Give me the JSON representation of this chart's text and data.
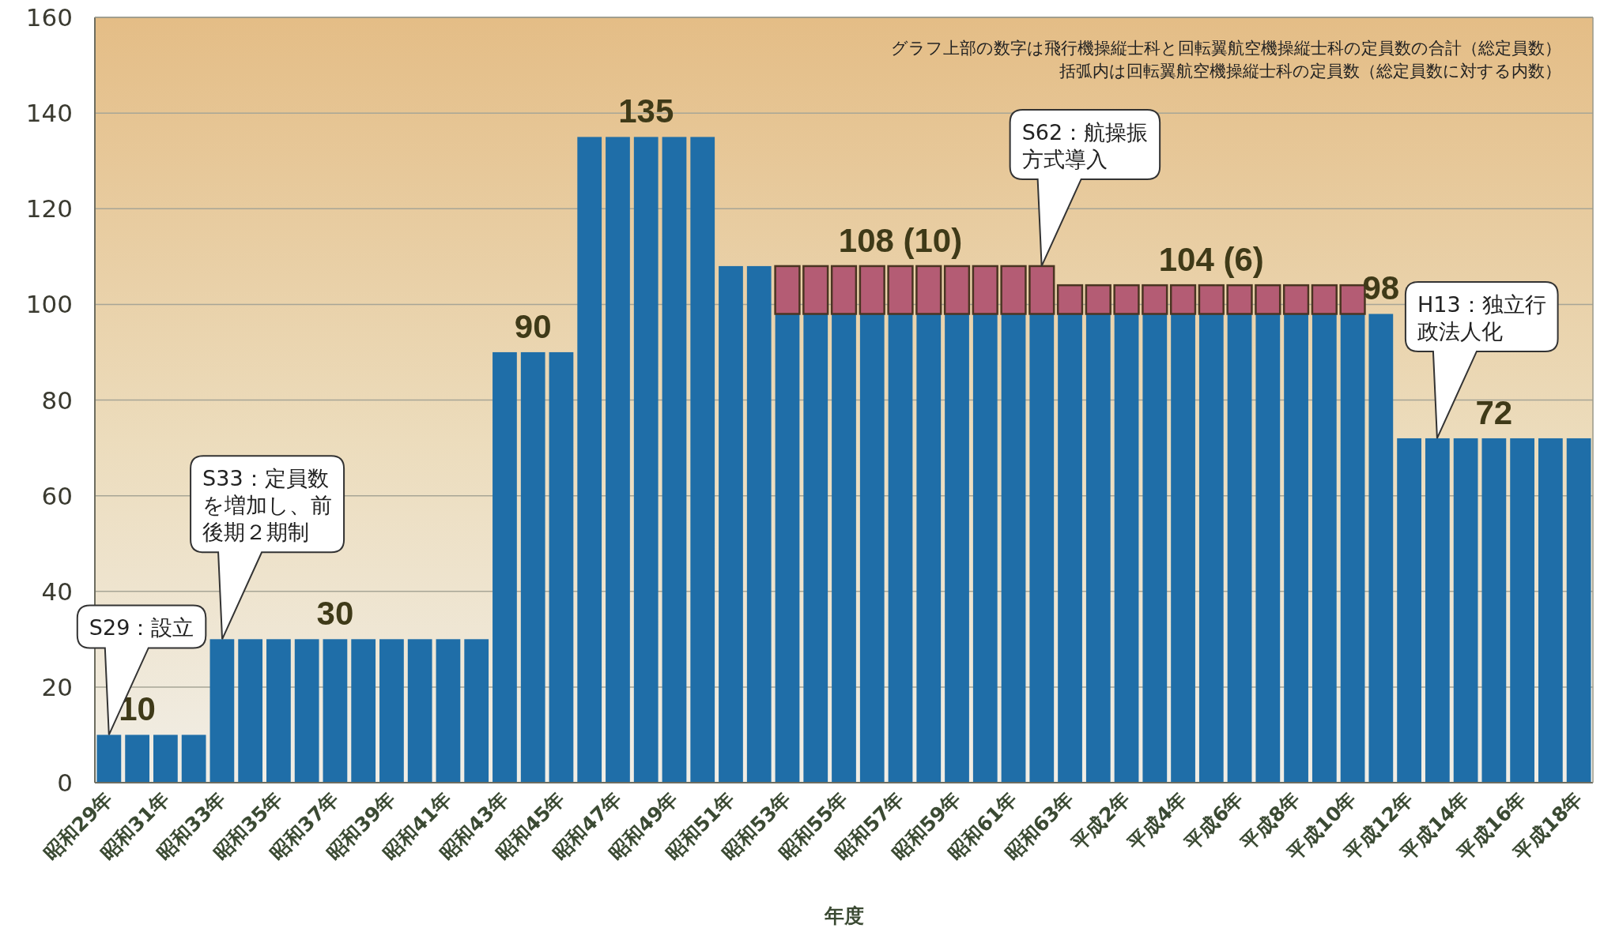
{
  "chart_data": {
    "type": "bar",
    "stacked": true,
    "xlabel": "年度",
    "categories": [
      "昭和29年",
      null,
      "昭和31年",
      null,
      "昭和33年",
      null,
      "昭和35年",
      null,
      "昭和37年",
      null,
      "昭和39年",
      null,
      "昭和41年",
      null,
      "昭和43年",
      null,
      "昭和45年",
      null,
      "昭和47年",
      null,
      "昭和49年",
      null,
      "昭和51年",
      null,
      "昭和53年",
      null,
      "昭和55年",
      null,
      "昭和57年",
      null,
      "昭和59年",
      null,
      "昭和61年",
      null,
      "昭和63年",
      null,
      "平成2年",
      null,
      "平成4年",
      null,
      "平成6年",
      null,
      "平成8年",
      null,
      "平成10年",
      null,
      "平成12年",
      null,
      "平成14年",
      null,
      "平成16年",
      null,
      "平成18年"
    ],
    "ylim": [
      0,
      160
    ],
    "yticks": [
      0,
      20,
      40,
      60,
      80,
      100,
      120,
      140,
      160
    ],
    "grid": "y",
    "series": [
      {
        "color": "#1f6ea8",
        "values": [
          10,
          10,
          10,
          10,
          30,
          30,
          30,
          30,
          30,
          30,
          30,
          30,
          30,
          30,
          90,
          90,
          90,
          135,
          135,
          135,
          135,
          135,
          108,
          108,
          98,
          98,
          98,
          98,
          98,
          98,
          98,
          98,
          98,
          98,
          98,
          98,
          98,
          98,
          98,
          98,
          98,
          98,
          98,
          98,
          98,
          98,
          72,
          72,
          72,
          72,
          72,
          72,
          72
        ]
      },
      {
        "color": "#b45c74",
        "values": [
          null,
          null,
          null,
          null,
          null,
          null,
          null,
          null,
          null,
          null,
          null,
          null,
          null,
          null,
          null,
          null,
          null,
          null,
          null,
          null,
          null,
          null,
          null,
          null,
          10,
          10,
          10,
          10,
          10,
          10,
          10,
          10,
          10,
          10,
          6,
          6,
          6,
          6,
          6,
          6,
          6,
          6,
          6,
          6,
          6,
          null,
          null,
          null,
          null,
          null,
          null,
          null,
          null
        ]
      }
    ],
    "totals": [
      null,
      "10",
      null,
      null,
      null,
      null,
      null,
      null,
      "30",
      null,
      null,
      null,
      null,
      null,
      null,
      "90",
      null,
      null,
      null,
      "135",
      null,
      null,
      null,
      null,
      null,
      null,
      null,
      null,
      "108 (10)",
      null,
      null,
      null,
      null,
      null,
      null,
      null,
      null,
      null,
      null,
      "104 (6)",
      null,
      null,
      null,
      null,
      null,
      "98",
      null,
      null,
      null,
      "72",
      null,
      null,
      null
    ],
    "annotations": [
      "グラフ上部の数字は飛行機操縦士科と回転翼航空機操縦士科の定員数の合計（総定員数）",
      "括弧内は回転翼航空機操縦士科の定員数（総定員数に対する内数）",
      "S29：設立",
      "S33：定員数を増加し、前後期２期制",
      "S62：航操振方式導入",
      "H13：独立行政法人化"
    ]
  }
}
